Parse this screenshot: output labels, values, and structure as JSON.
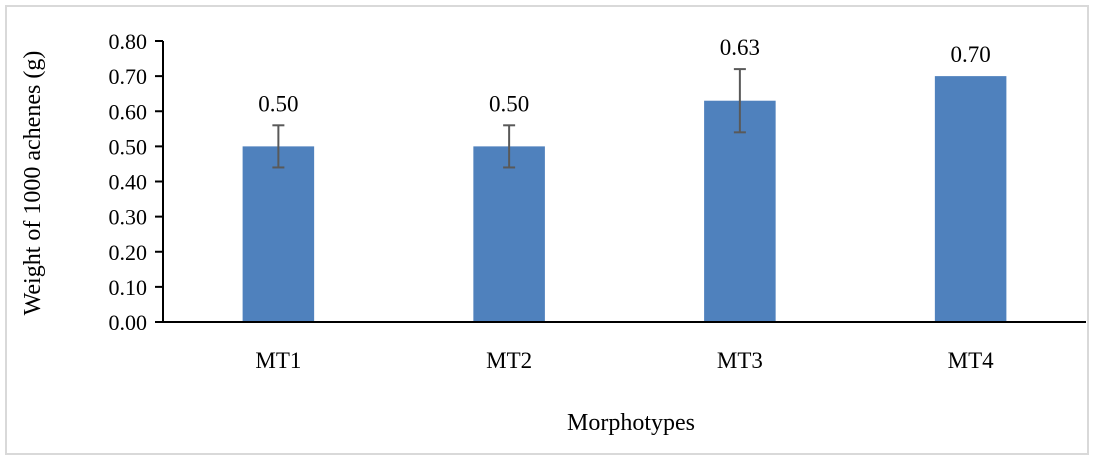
{
  "chart_data": {
    "type": "bar",
    "title": "",
    "xlabel": "Morphotypes",
    "ylabel": "Weight of 1000 achenes (g)",
    "categories": [
      "MT1",
      "MT2",
      "MT3",
      "MT4"
    ],
    "values": [
      0.5,
      0.5,
      0.63,
      0.7
    ],
    "value_labels": [
      "0.50",
      "0.50",
      "0.63",
      "0.70"
    ],
    "error_bars": [
      0.06,
      0.06,
      0.09,
      0.0
    ],
    "ylim": [
      0,
      0.8
    ],
    "yticks": [
      "0.00",
      "0.10",
      "0.20",
      "0.30",
      "0.40",
      "0.50",
      "0.60",
      "0.70",
      "0.80"
    ],
    "grid": false,
    "legend": "none",
    "bar_color": "#4f81bd",
    "error_color": "#595959"
  }
}
